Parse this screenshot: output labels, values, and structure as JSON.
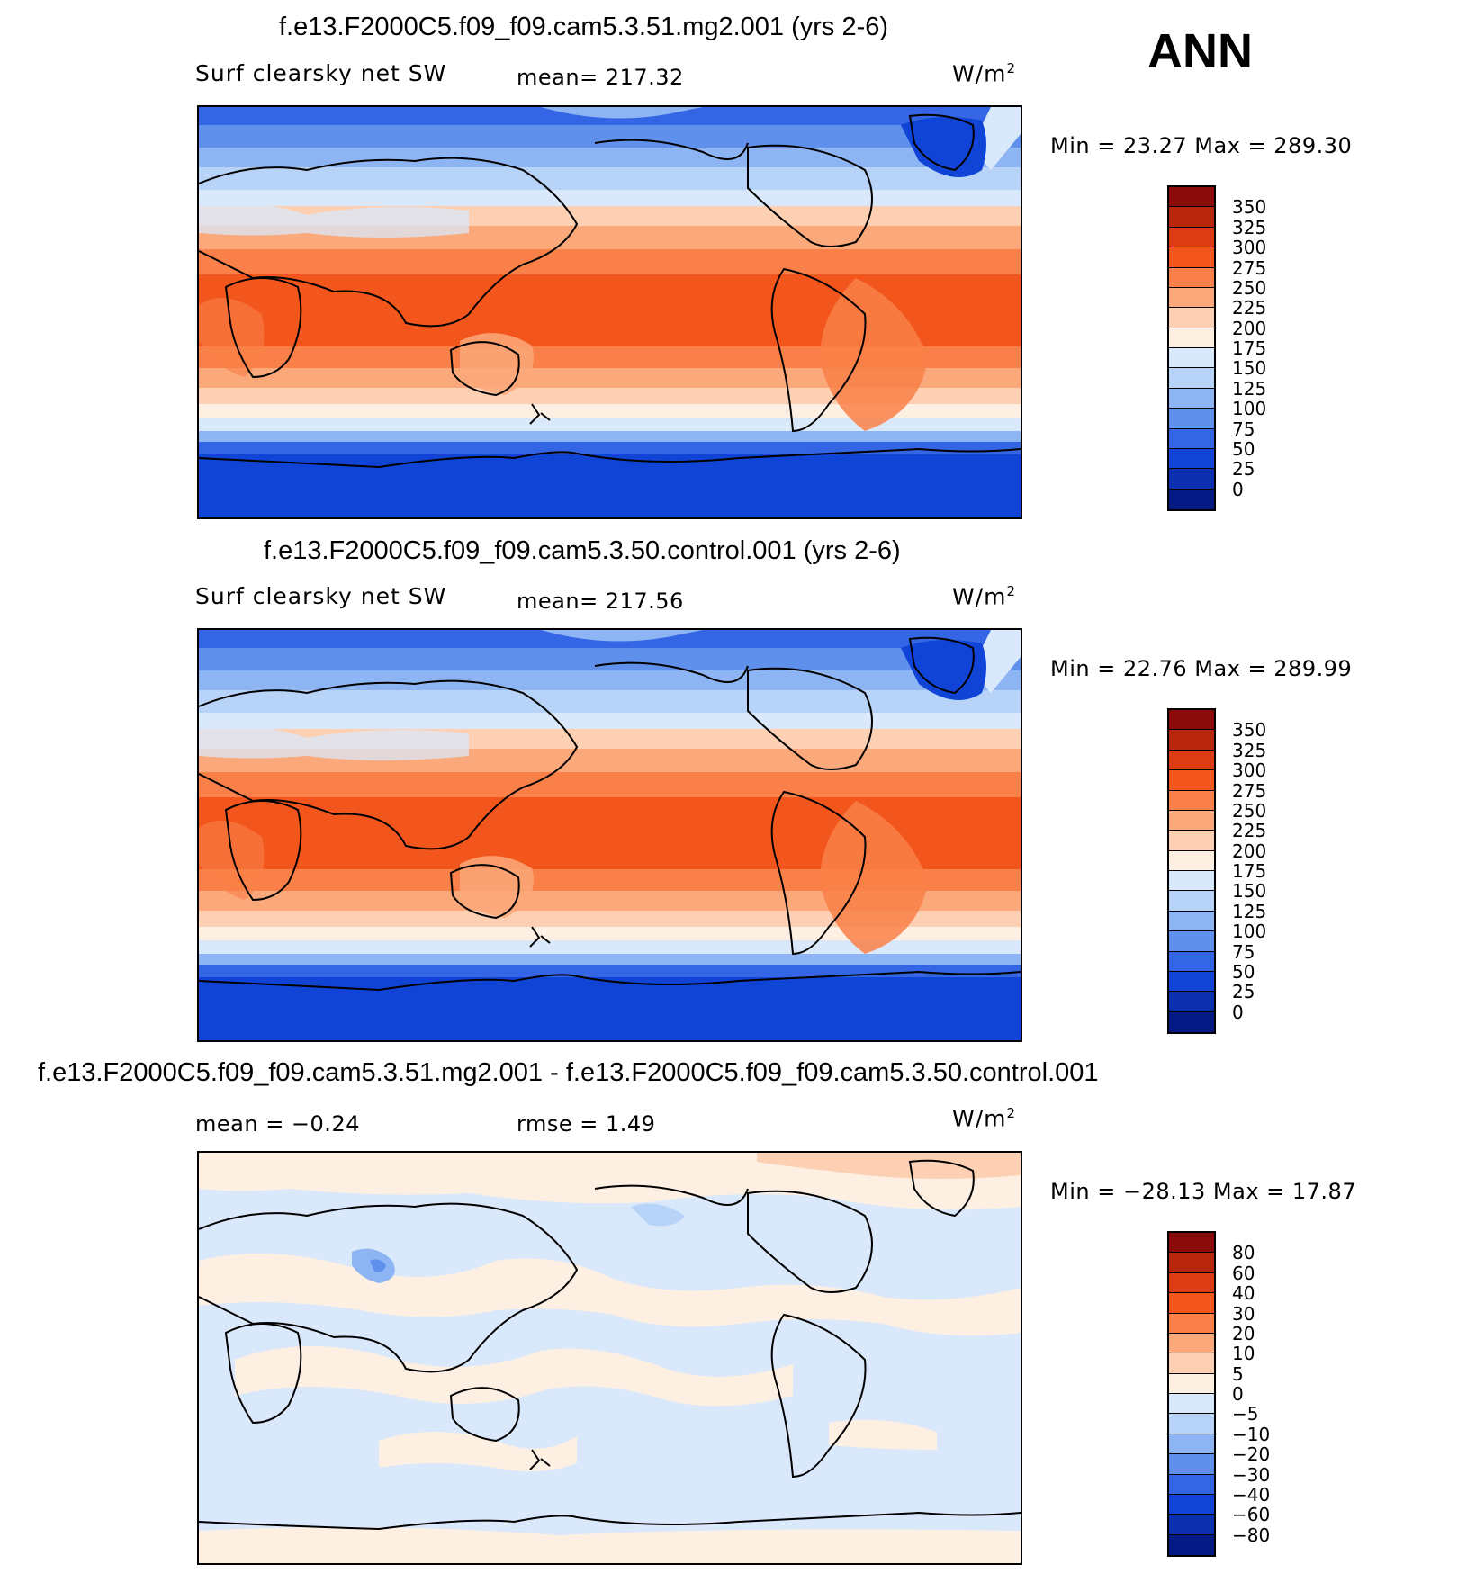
{
  "season": "ANN",
  "units": "W/m",
  "units_sup": "2",
  "panels": [
    {
      "title": "f.e13.F2000C5.f09_f09.cam5.3.51.mg2.001 (yrs 2-6)",
      "variable": "Surf clearsky net SW",
      "mean_text": "mean= 217.32",
      "minmax_text": "Min =   23.27 Max = 289.30",
      "levels": [
        "350",
        "325",
        "300",
        "275",
        "250",
        "225",
        "200",
        "175",
        "150",
        "125",
        "100",
        "75",
        "50",
        "25",
        "0"
      ],
      "colors": [
        "#8b0a0a",
        "#b8260c",
        "#dd3b13",
        "#f3561c",
        "#f98048",
        "#fba87a",
        "#fdd0b4",
        "#fdf0e2",
        "#dae8fb",
        "#b7d3f7",
        "#8db5f3",
        "#5e90ec",
        "#3365e4",
        "#1044d6",
        "#0b2fae",
        "#061a86"
      ]
    },
    {
      "title": "f.e13.F2000C5.f09_f09.cam5.3.50.control.001 (yrs 2-6)",
      "variable": "Surf clearsky net SW",
      "mean_text": "mean= 217.56",
      "minmax_text": "Min =   22.76 Max = 289.99",
      "levels": [
        "350",
        "325",
        "300",
        "275",
        "250",
        "225",
        "200",
        "175",
        "150",
        "125",
        "100",
        "75",
        "50",
        "25",
        "0"
      ],
      "colors": [
        "#8b0a0a",
        "#b8260c",
        "#dd3b13",
        "#f3561c",
        "#f98048",
        "#fba87a",
        "#fdd0b4",
        "#fdf0e2",
        "#dae8fb",
        "#b7d3f7",
        "#8db5f3",
        "#5e90ec",
        "#3365e4",
        "#1044d6",
        "#0b2fae",
        "#061a86"
      ]
    },
    {
      "title": "f.e13.F2000C5.f09_f09.cam5.3.51.mg2.001 - f.e13.F2000C5.f09_f09.cam5.3.50.control.001",
      "mean_text": "mean =   −0.24",
      "rmse_text": "rmse =     1.49",
      "minmax_text": "Min = −28.13 Max =   17.87",
      "levels": [
        "80",
        "60",
        "40",
        "30",
        "20",
        "10",
        "5",
        "0",
        "−5",
        "−10",
        "−20",
        "−30",
        "−40",
        "−60",
        "−80"
      ],
      "colors": [
        "#8b0a0a",
        "#b8260c",
        "#dd3b13",
        "#f3561c",
        "#f98048",
        "#fba87a",
        "#fdd0b4",
        "#fdf0e2",
        "#dae8fb",
        "#b7d3f7",
        "#8db5f3",
        "#5e90ec",
        "#3365e4",
        "#1044d6",
        "#0b2fae",
        "#061a86"
      ]
    }
  ]
}
